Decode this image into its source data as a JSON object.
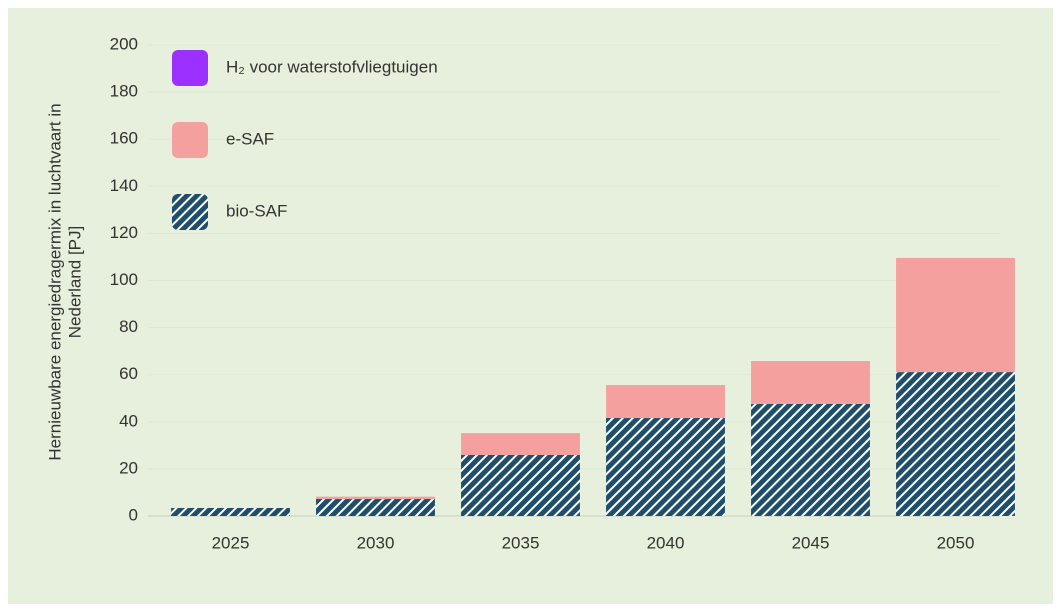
{
  "chart_data": {
    "type": "stacked_bar",
    "ylabel": [
      "Hernieuwbare energiedragermix in luchtvaart in",
      "Nederland [PJ]"
    ],
    "categories": [
      "2025",
      "2030",
      "2035",
      "2040",
      "2045",
      "2050"
    ],
    "series": [
      {
        "name": "bio-SAF",
        "color": "#1f4e6b",
        "pattern": "hatch",
        "values": [
          3.4,
          7.2,
          25.9,
          41.6,
          47.6,
          61.1
        ]
      },
      {
        "name": "e-SAF",
        "color": "#f4a09f",
        "values": [
          0,
          1,
          9.3,
          14,
          18.2,
          48.5
        ]
      },
      {
        "name": "H₂ voor waterstofvliegtuigen",
        "color": "#9b30ff",
        "values": [
          0,
          0,
          0,
          0,
          0,
          0
        ]
      }
    ],
    "ylim": [
      0,
      200
    ],
    "yticks": [
      0,
      20,
      40,
      60,
      80,
      100,
      120,
      140,
      160,
      180,
      200
    ],
    "grid": true,
    "legend": "upper left"
  }
}
